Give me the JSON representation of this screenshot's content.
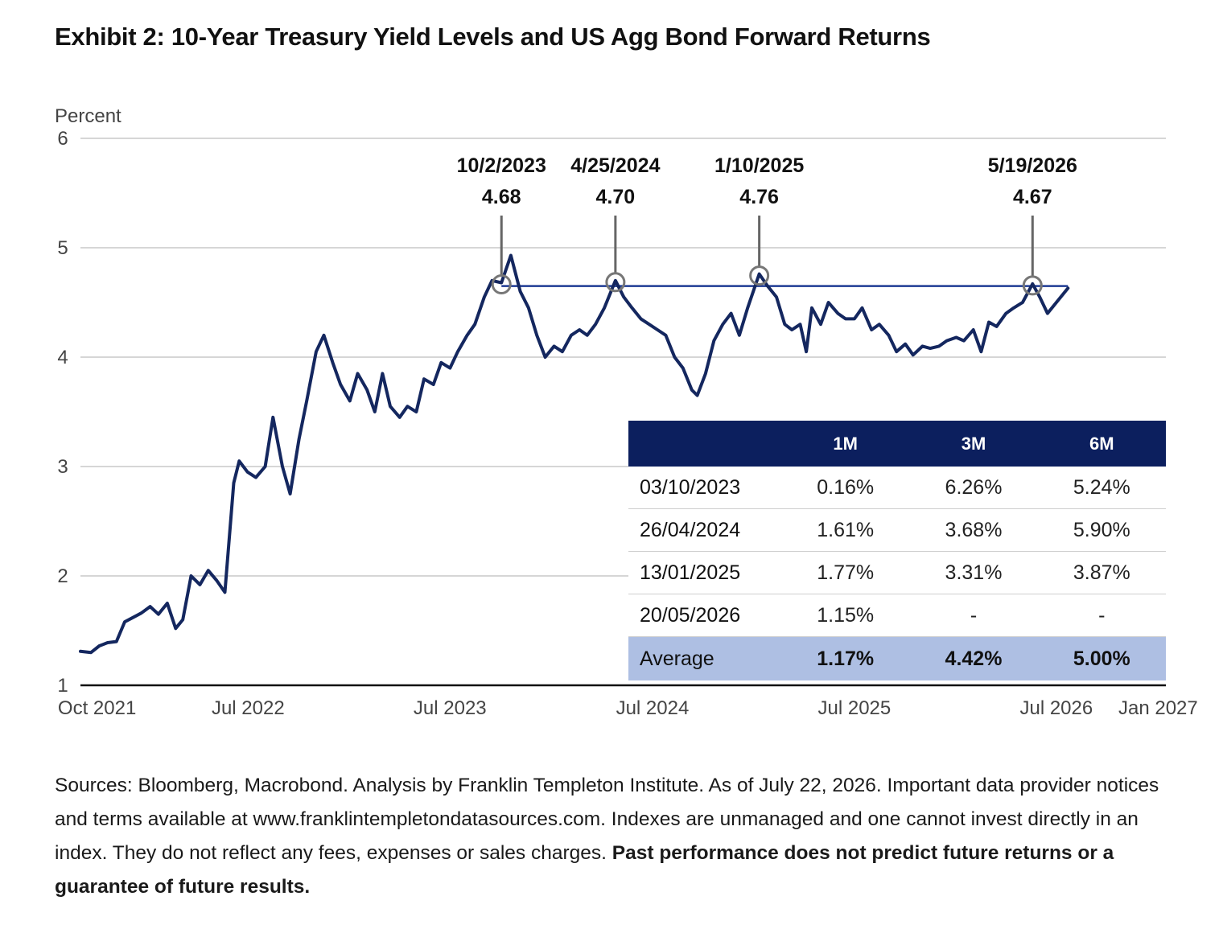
{
  "title": "Exhibit 2: 10-Year Treasury Yield Levels and US Agg Bond Forward Returns",
  "source_text": "Sources: Bloomberg, Macrobond. Analysis by Franklin Templeton Institute. As of July 22, 2026. Important data provider notices and terms available at www.franklintempletondatasources.com. Indexes are unmanaged and one cannot invest directly in an index. They do not reflect any fees, expenses or sales charges.",
  "source_bold": "Past performance does not predict future returns or a guarantee of future results.",
  "colors": {
    "line": "#14275f",
    "table_header": "#0c1f5e",
    "average_row": "#aebfe3"
  },
  "chart_data": {
    "type": "line",
    "ylabel": "Percent",
    "ylim": [
      1,
      6
    ],
    "yticks": [
      1,
      2,
      3,
      4,
      5,
      6
    ],
    "xlim": [
      "2021-09-01",
      "2027-01-15"
    ],
    "xticks": [
      {
        "date": "2021-10-01",
        "label": "Oct 2021"
      },
      {
        "date": "2022-07-01",
        "label": "Jul 2022"
      },
      {
        "date": "2023-07-01",
        "label": "Jul 2023"
      },
      {
        "date": "2024-07-01",
        "label": "Jul 2024"
      },
      {
        "date": "2025-07-01",
        "label": "Jul 2025"
      },
      {
        "date": "2026-07-01",
        "label": "Jul 2026"
      },
      {
        "date": "2027-01-01",
        "label": "Jan 2027"
      }
    ],
    "grid": true,
    "series": [
      {
        "points": [
          [
            "2021-09-01",
            1.31
          ],
          [
            "2021-09-20",
            1.3
          ],
          [
            "2021-10-05",
            1.36
          ],
          [
            "2021-10-20",
            1.39
          ],
          [
            "2021-11-05",
            1.4
          ],
          [
            "2021-11-20",
            1.58
          ],
          [
            "2021-12-05",
            1.62
          ],
          [
            "2021-12-20",
            1.66
          ],
          [
            "2022-01-05",
            1.72
          ],
          [
            "2022-01-20",
            1.65
          ],
          [
            "2022-02-05",
            1.75
          ],
          [
            "2022-02-20",
            1.52
          ],
          [
            "2022-03-05",
            1.6
          ],
          [
            "2022-03-20",
            2.0
          ],
          [
            "2022-04-05",
            1.92
          ],
          [
            "2022-04-20",
            2.05
          ],
          [
            "2022-05-05",
            1.96
          ],
          [
            "2022-05-20",
            1.85
          ],
          [
            "2022-06-05",
            2.85
          ],
          [
            "2022-06-15",
            3.05
          ],
          [
            "2022-06-30",
            2.95
          ],
          [
            "2022-07-15",
            2.9
          ],
          [
            "2022-08-01",
            3.0
          ],
          [
            "2022-08-15",
            3.45
          ],
          [
            "2022-09-01",
            3.0
          ],
          [
            "2022-09-15",
            2.75
          ],
          [
            "2022-10-01",
            3.25
          ],
          [
            "2022-10-15",
            3.6
          ],
          [
            "2022-11-01",
            4.05
          ],
          [
            "2022-11-15",
            4.2
          ],
          [
            "2022-12-01",
            3.95
          ],
          [
            "2022-12-15",
            3.75
          ],
          [
            "2023-01-01",
            3.6
          ],
          [
            "2023-01-15",
            3.85
          ],
          [
            "2023-02-01",
            3.7
          ],
          [
            "2023-02-15",
            3.5
          ],
          [
            "2023-03-01",
            3.85
          ],
          [
            "2023-03-15",
            3.55
          ],
          [
            "2023-04-01",
            3.45
          ],
          [
            "2023-04-15",
            3.55
          ],
          [
            "2023-05-01",
            3.5
          ],
          [
            "2023-05-15",
            3.8
          ],
          [
            "2023-06-01",
            3.75
          ],
          [
            "2023-06-15",
            3.95
          ],
          [
            "2023-07-01",
            3.9
          ],
          [
            "2023-07-15",
            4.05
          ],
          [
            "2023-08-01",
            4.2
          ],
          [
            "2023-08-15",
            4.3
          ],
          [
            "2023-09-01",
            4.55
          ],
          [
            "2023-09-15",
            4.7
          ],
          [
            "2023-10-02",
            4.68
          ],
          [
            "2023-10-19",
            4.93
          ],
          [
            "2023-11-05",
            4.6
          ],
          [
            "2023-11-20",
            4.45
          ],
          [
            "2023-12-05",
            4.2
          ],
          [
            "2023-12-20",
            4.0
          ],
          [
            "2024-01-05",
            4.1
          ],
          [
            "2024-01-20",
            4.05
          ],
          [
            "2024-02-05",
            4.2
          ],
          [
            "2024-02-20",
            4.25
          ],
          [
            "2024-03-05",
            4.2
          ],
          [
            "2024-03-20",
            4.3
          ],
          [
            "2024-04-05",
            4.45
          ],
          [
            "2024-04-25",
            4.7
          ],
          [
            "2024-05-10",
            4.55
          ],
          [
            "2024-05-25",
            4.45
          ],
          [
            "2024-06-10",
            4.35
          ],
          [
            "2024-06-25",
            4.3
          ],
          [
            "2024-07-10",
            4.25
          ],
          [
            "2024-07-25",
            4.2
          ],
          [
            "2024-08-10",
            4.0
          ],
          [
            "2024-08-25",
            3.9
          ],
          [
            "2024-09-10",
            3.7
          ],
          [
            "2024-09-20",
            3.65
          ],
          [
            "2024-10-05",
            3.85
          ],
          [
            "2024-10-20",
            4.15
          ],
          [
            "2024-11-05",
            4.3
          ],
          [
            "2024-11-20",
            4.4
          ],
          [
            "2024-12-05",
            4.2
          ],
          [
            "2024-12-20",
            4.45
          ],
          [
            "2025-01-10",
            4.76
          ],
          [
            "2025-01-25",
            4.65
          ],
          [
            "2025-02-10",
            4.55
          ],
          [
            "2025-02-25",
            4.3
          ],
          [
            "2025-03-10",
            4.25
          ],
          [
            "2025-03-25",
            4.3
          ],
          [
            "2025-04-05",
            4.05
          ],
          [
            "2025-04-15",
            4.45
          ],
          [
            "2025-05-01",
            4.3
          ],
          [
            "2025-05-15",
            4.5
          ],
          [
            "2025-06-01",
            4.4
          ],
          [
            "2025-06-15",
            4.35
          ],
          [
            "2025-07-01",
            4.35
          ],
          [
            "2025-07-15",
            4.45
          ],
          [
            "2025-08-01",
            4.25
          ],
          [
            "2025-08-15",
            4.3
          ],
          [
            "2025-09-01",
            4.2
          ],
          [
            "2025-09-15",
            4.05
          ],
          [
            "2025-10-01",
            4.12
          ],
          [
            "2025-10-15",
            4.02
          ],
          [
            "2025-11-01",
            4.1
          ],
          [
            "2025-11-15",
            4.08
          ],
          [
            "2025-12-01",
            4.1
          ],
          [
            "2025-12-15",
            4.15
          ],
          [
            "2026-01-01",
            4.18
          ],
          [
            "2026-01-15",
            4.15
          ],
          [
            "2026-02-01",
            4.25
          ],
          [
            "2026-02-15",
            4.05
          ],
          [
            "2026-03-01",
            4.32
          ],
          [
            "2026-03-15",
            4.28
          ],
          [
            "2026-04-01",
            4.4
          ],
          [
            "2026-04-15",
            4.45
          ],
          [
            "2026-05-01",
            4.5
          ],
          [
            "2026-05-19",
            4.67
          ],
          [
            "2026-06-01",
            4.55
          ],
          [
            "2026-06-15",
            4.4
          ],
          [
            "2026-07-01",
            4.5
          ],
          [
            "2026-07-22",
            4.63
          ]
        ]
      }
    ],
    "reference_line": {
      "y": 4.65,
      "from": "2023-10-02",
      "to": "2026-07-22"
    },
    "annotations": [
      {
        "date": "2023-10-02",
        "label_date": "10/2/2023",
        "label_value": "4.68",
        "y": 4.68
      },
      {
        "date": "2024-04-25",
        "label_date": "4/25/2024",
        "label_value": "4.70",
        "y": 4.7
      },
      {
        "date": "2025-01-10",
        "label_date": "1/10/2025",
        "label_value": "4.76",
        "y": 4.76
      },
      {
        "date": "2026-05-19",
        "label_date": "5/19/2026",
        "label_value": "4.67",
        "y": 4.67
      }
    ],
    "table": {
      "headers": [
        "",
        "1M",
        "3M",
        "6M"
      ],
      "rows": [
        [
          "03/10/2023",
          "0.16%",
          "6.26%",
          "5.24%"
        ],
        [
          "26/04/2024",
          "1.61%",
          "3.68%",
          "5.90%"
        ],
        [
          "13/01/2025",
          "1.77%",
          "3.31%",
          "3.87%"
        ],
        [
          "20/05/2026",
          "1.15%",
          "-",
          "-"
        ]
      ],
      "average": [
        "Average",
        "1.17%",
        "4.42%",
        "5.00%"
      ]
    }
  }
}
